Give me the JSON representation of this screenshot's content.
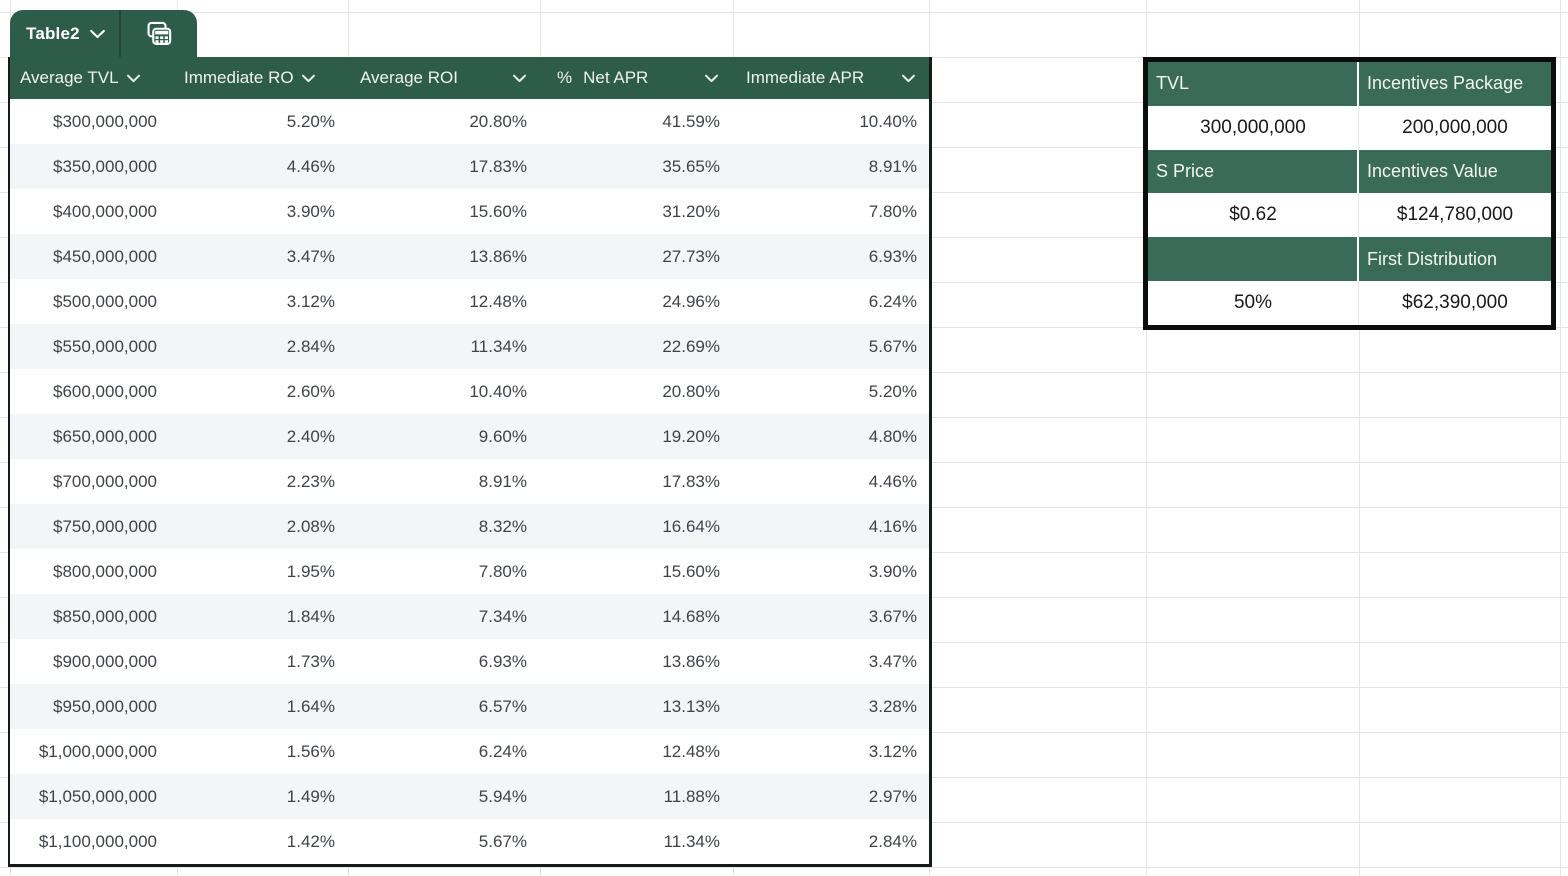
{
  "tab": {
    "title": "Table2"
  },
  "table": {
    "columns": [
      {
        "label": "Average TVL"
      },
      {
        "label": "Immediate RO"
      },
      {
        "label": "Average ROI"
      },
      {
        "label": "Net APR",
        "format_icon": "%"
      },
      {
        "label": "Immediate APR"
      }
    ],
    "rows": [
      [
        "$300,000,000",
        "5.20%",
        "20.80%",
        "41.59%",
        "10.40%"
      ],
      [
        "$350,000,000",
        "4.46%",
        "17.83%",
        "35.65%",
        "8.91%"
      ],
      [
        "$400,000,000",
        "3.90%",
        "15.60%",
        "31.20%",
        "7.80%"
      ],
      [
        "$450,000,000",
        "3.47%",
        "13.86%",
        "27.73%",
        "6.93%"
      ],
      [
        "$500,000,000",
        "3.12%",
        "12.48%",
        "24.96%",
        "6.24%"
      ],
      [
        "$550,000,000",
        "2.84%",
        "11.34%",
        "22.69%",
        "5.67%"
      ],
      [
        "$600,000,000",
        "2.60%",
        "10.40%",
        "20.80%",
        "5.20%"
      ],
      [
        "$650,000,000",
        "2.40%",
        "9.60%",
        "19.20%",
        "4.80%"
      ],
      [
        "$700,000,000",
        "2.23%",
        "8.91%",
        "17.83%",
        "4.46%"
      ],
      [
        "$750,000,000",
        "2.08%",
        "8.32%",
        "16.64%",
        "4.16%"
      ],
      [
        "$800,000,000",
        "1.95%",
        "7.80%",
        "15.60%",
        "3.90%"
      ],
      [
        "$850,000,000",
        "1.84%",
        "7.34%",
        "14.68%",
        "3.67%"
      ],
      [
        "$900,000,000",
        "1.73%",
        "6.93%",
        "13.86%",
        "3.47%"
      ],
      [
        "$950,000,000",
        "1.64%",
        "6.57%",
        "13.13%",
        "3.28%"
      ],
      [
        "$1,000,000,000",
        "1.56%",
        "6.24%",
        "12.48%",
        "3.12%"
      ],
      [
        "$1,050,000,000",
        "1.49%",
        "5.94%",
        "11.88%",
        "2.97%"
      ],
      [
        "$1,100,000,000",
        "1.42%",
        "5.67%",
        "11.34%",
        "2.84%"
      ]
    ]
  },
  "panel": {
    "rows": [
      {
        "type": "header",
        "cells": [
          "TVL",
          "Incentives Package"
        ]
      },
      {
        "type": "value",
        "cells": [
          "300,000,000",
          "200,000,000"
        ]
      },
      {
        "type": "header",
        "cells": [
          "S Price",
          "Incentives Value"
        ]
      },
      {
        "type": "value",
        "cells": [
          "$0.62",
          "$124,780,000"
        ]
      },
      {
        "type": "header",
        "cells": [
          "",
          "First Distribution"
        ]
      },
      {
        "type": "value",
        "cells": [
          "50%",
          "$62,390,000"
        ]
      }
    ]
  },
  "colors": {
    "table_green": "#2E5C4A",
    "panel_green": "#3A6A58",
    "row_alt": "#F4F5F7",
    "grid_line": "#E3E4E6",
    "table_border": "#161B18",
    "panel_border": "#0B0D0C",
    "body_text": "#3F4349",
    "header_text": "#F0F2EE",
    "panel_header_text": "#F2F5F1",
    "value_text": "#17191B"
  }
}
